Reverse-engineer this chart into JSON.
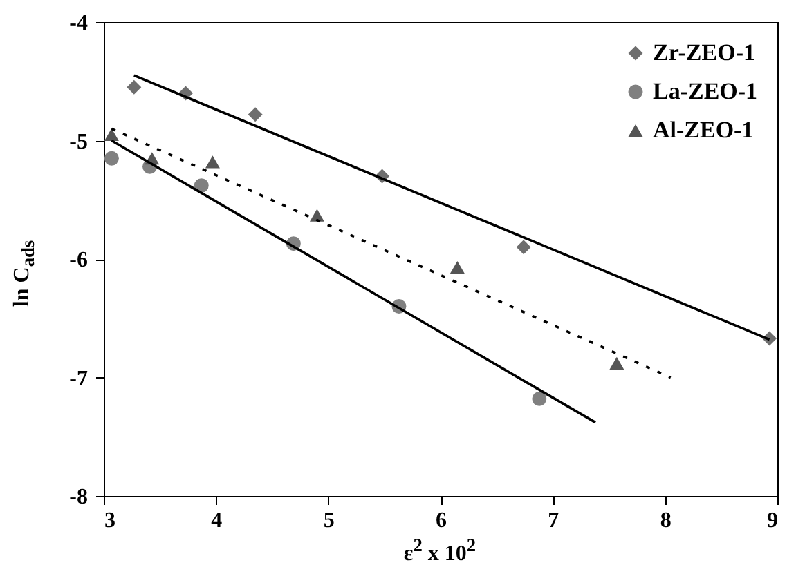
{
  "chart_data": {
    "type": "scatter",
    "xlabel": "ε$^{2}$ x 10$^{2}$",
    "ylabel": "ln C$_{ads}$",
    "xlim": [
      3,
      9
    ],
    "ylim": [
      -8,
      -4
    ],
    "xticks": [
      3,
      4,
      5,
      6,
      7,
      8,
      9
    ],
    "yticks": [
      -8,
      -7,
      -6,
      -5,
      -4
    ],
    "grid": false,
    "legend": "top right",
    "series": [
      {
        "name": "Zr-ZEO-1",
        "type": "scatter",
        "marker": "diamond",
        "color": "#6e6e6e",
        "x": [
          3.27,
          3.73,
          4.35,
          5.48,
          6.74,
          8.93
        ],
        "values": [
          -4.55,
          -4.6,
          -4.78,
          -5.3,
          -5.9,
          -6.67
        ]
      },
      {
        "name": "La-ZEO-1",
        "type": "scatter",
        "marker": "circle",
        "color": "#808080",
        "x": [
          3.07,
          3.41,
          3.87,
          4.69,
          5.63,
          6.88
        ],
        "values": [
          -5.15,
          -5.22,
          -5.38,
          -5.87,
          -6.4,
          -7.18
        ]
      },
      {
        "name": "Al-ZEO-1",
        "type": "scatter",
        "marker": "triangle",
        "color": "#555555",
        "x": [
          3.07,
          3.43,
          3.97,
          4.9,
          6.15,
          7.57
        ],
        "values": [
          -4.95,
          -5.15,
          -5.18,
          -5.63,
          -6.07,
          -6.88
        ]
      },
      {
        "type": "line",
        "line_style": "solid",
        "color": "#000000",
        "x": [
          3.27,
          8.93
        ],
        "values": [
          -4.45,
          -6.68
        ]
      },
      {
        "type": "line",
        "line_style": "solid",
        "color": "#000000",
        "x": [
          3.07,
          7.38
        ],
        "values": [
          -5.0,
          -7.38
        ]
      },
      {
        "type": "line",
        "line_style": "dotted",
        "color": "#000000",
        "x": [
          3.07,
          8.05
        ],
        "values": [
          -4.9,
          -7.0
        ]
      }
    ]
  }
}
